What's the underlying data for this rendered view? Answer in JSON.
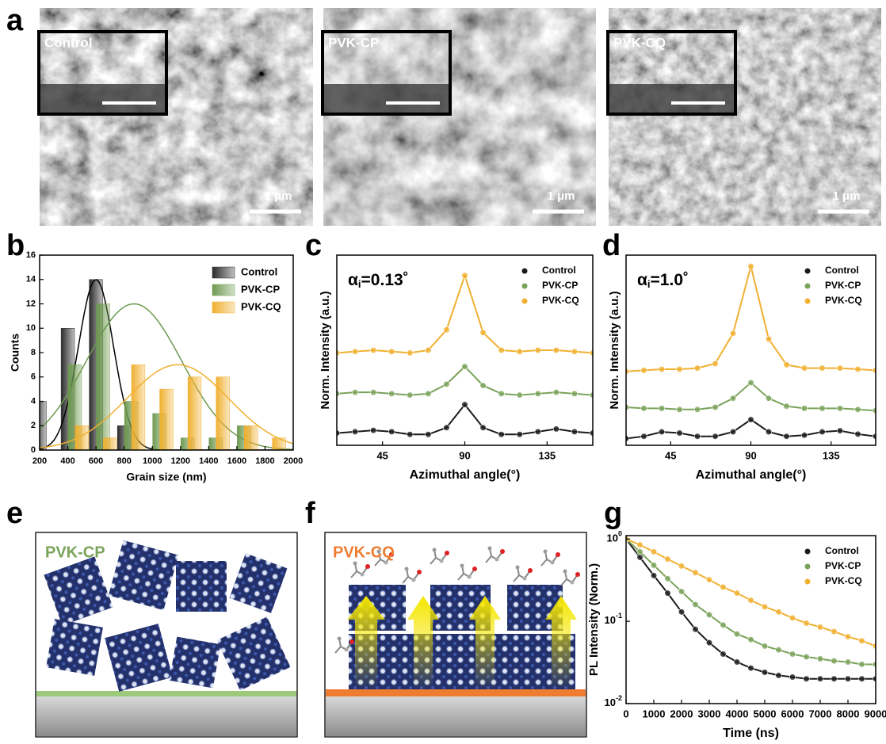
{
  "panel_labels": [
    "a",
    "b",
    "c",
    "d",
    "e",
    "f",
    "g"
  ],
  "sem_images": [
    {
      "label": "Control",
      "scale": "1 μm"
    },
    {
      "label": "PVK-CP",
      "scale": "1 μm"
    },
    {
      "label": "PVK-CQ",
      "scale": "1 μm"
    }
  ],
  "chart_data": [
    {
      "type": "bar",
      "x_label": "Grain size (nm)",
      "y_label": "Counts",
      "xlim": [
        200,
        2000
      ],
      "xticks": [
        200,
        400,
        600,
        800,
        1000,
        1200,
        1400,
        1600,
        1800,
        2000
      ],
      "ylim": [
        0,
        16
      ],
      "yticks": [
        0,
        2,
        4,
        6,
        8,
        10,
        12,
        14,
        16
      ],
      "legend": "upper right",
      "series": [
        {
          "name": "Control",
          "color": "#2b2b2b",
          "x": [
            200,
            400,
            600,
            800
          ],
          "values": [
            4,
            10,
            14,
            2
          ],
          "fit": {
            "mean": 600,
            "sd": 125,
            "peak": 14
          }
        },
        {
          "name": "PVK-CP",
          "color": "#6e9a50",
          "x": [
            450,
            650,
            850,
            1050,
            1250,
            1450,
            1650
          ],
          "values": [
            7,
            12,
            4,
            3,
            1,
            1,
            2
          ],
          "fit": {
            "mean": 870,
            "sd": 340,
            "peak": 12
          }
        },
        {
          "name": "PVK-CQ",
          "color": "#f0b030",
          "x": [
            500,
            700,
            900,
            1100,
            1300,
            1500,
            1700,
            1900
          ],
          "values": [
            2,
            1,
            7,
            5,
            6,
            6,
            2,
            1
          ],
          "fit": {
            "mean": 1180,
            "sd": 360,
            "peak": 7
          }
        }
      ]
    },
    {
      "type": "scatter",
      "annotation": {
        "symbol": "α",
        "subscript": "i",
        "text": "=0.13˚"
      },
      "x_label": "Azimuthal angle(°)",
      "y_label": "Norm. Intensity (a.u.)",
      "xlim": [
        20,
        160
      ],
      "xticks": [
        45,
        90,
        135
      ],
      "ylim": [
        0,
        14
      ],
      "legend": "upper right",
      "x": [
        20,
        30,
        40,
        50,
        60,
        70,
        80,
        90,
        100,
        110,
        120,
        130,
        140,
        150,
        160
      ],
      "series": [
        {
          "name": "Control",
          "color": "#1a1a1a",
          "values": [
            0.9,
            1.0,
            1.1,
            1.0,
            0.8,
            0.8,
            1.3,
            3.0,
            1.3,
            0.8,
            0.8,
            1.0,
            1.2,
            1.0,
            0.9
          ]
        },
        {
          "name": "PVK-CP",
          "color": "#7aa35a",
          "values": [
            3.8,
            3.9,
            3.9,
            3.8,
            3.7,
            3.8,
            4.5,
            5.8,
            4.4,
            3.8,
            3.7,
            3.8,
            3.9,
            3.8,
            3.7
          ]
        },
        {
          "name": "PVK-CQ",
          "color": "#f0b030",
          "values": [
            6.8,
            6.9,
            7.0,
            6.9,
            6.8,
            7.0,
            8.5,
            12.5,
            8.3,
            7.0,
            6.9,
            7.0,
            7.0,
            6.9,
            6.8
          ]
        }
      ]
    },
    {
      "type": "scatter",
      "annotation": {
        "symbol": "α",
        "subscript": "i",
        "text": "=1.0˚"
      },
      "x_label": "Azimuthal angle(°)",
      "y_label": "Norm. Intensity (a.u.)",
      "xlim": [
        20,
        160
      ],
      "xticks": [
        45,
        90,
        135
      ],
      "ylim": [
        0,
        17
      ],
      "legend": "upper right",
      "x": [
        20,
        30,
        40,
        50,
        60,
        70,
        80,
        90,
        100,
        110,
        120,
        130,
        140,
        150,
        160
      ],
      "series": [
        {
          "name": "Control",
          "color": "#1a1a1a",
          "values": [
            0.6,
            0.8,
            1.2,
            1.1,
            0.8,
            0.8,
            1.2,
            2.3,
            1.2,
            0.8,
            0.9,
            1.2,
            1.3,
            1.0,
            0.8
          ]
        },
        {
          "name": "PVK-CP",
          "color": "#7aa35a",
          "values": [
            3.4,
            3.3,
            3.3,
            3.2,
            3.2,
            3.4,
            4.2,
            5.6,
            4.2,
            3.5,
            3.3,
            3.3,
            3.3,
            3.2,
            3.1
          ]
        },
        {
          "name": "PVK-CQ",
          "color": "#f0b030",
          "values": [
            6.6,
            6.7,
            6.8,
            6.8,
            6.9,
            7.3,
            10.0,
            16.0,
            9.5,
            7.2,
            6.9,
            6.9,
            6.9,
            6.8,
            6.7
          ]
        }
      ]
    },
    {
      "type": "scatter",
      "log_y": true,
      "x_label": "Time (ns)",
      "y_label": "PL Intensity (Norm.)",
      "xlim": [
        0,
        9000
      ],
      "xticks": [
        0,
        1000,
        2000,
        3000,
        4000,
        5000,
        6000,
        7000,
        8000,
        9000
      ],
      "ylim": [
        0.01,
        1.1
      ],
      "yticks": [
        {
          "value": 1,
          "label": "10",
          "exponent": "0"
        },
        {
          "value": 0.1,
          "label": "10",
          "exponent": "-1"
        },
        {
          "value": 0.01,
          "label": "10",
          "exponent": "-2"
        }
      ],
      "legend": "upper right",
      "x": [
        0,
        500,
        1000,
        1500,
        2000,
        2500,
        3000,
        3500,
        4000,
        4500,
        5000,
        5500,
        6000,
        6500,
        7000,
        7500,
        8000,
        8500,
        9000
      ],
      "series": [
        {
          "name": "Control",
          "color": "#1a1a1a",
          "values": [
            1,
            0.6,
            0.36,
            0.22,
            0.13,
            0.08,
            0.055,
            0.04,
            0.032,
            0.027,
            0.024,
            0.022,
            0.021,
            0.02,
            0.02,
            0.02,
            0.02,
            0.02,
            0.02
          ]
        },
        {
          "name": "PVK-CP",
          "color": "#7aa35a",
          "values": [
            1,
            0.7,
            0.48,
            0.33,
            0.23,
            0.16,
            0.12,
            0.09,
            0.07,
            0.06,
            0.05,
            0.045,
            0.04,
            0.037,
            0.035,
            0.033,
            0.032,
            0.03,
            0.03
          ]
        },
        {
          "name": "PVK-CQ",
          "color": "#f0b030",
          "values": [
            1,
            0.85,
            0.7,
            0.57,
            0.47,
            0.39,
            0.32,
            0.26,
            0.22,
            0.18,
            0.15,
            0.13,
            0.11,
            0.095,
            0.085,
            0.075,
            0.065,
            0.058,
            0.05
          ]
        }
      ]
    }
  ],
  "schematics": [
    {
      "label": "PVK-CP"
    },
    {
      "label": "PVK-CQ"
    }
  ]
}
